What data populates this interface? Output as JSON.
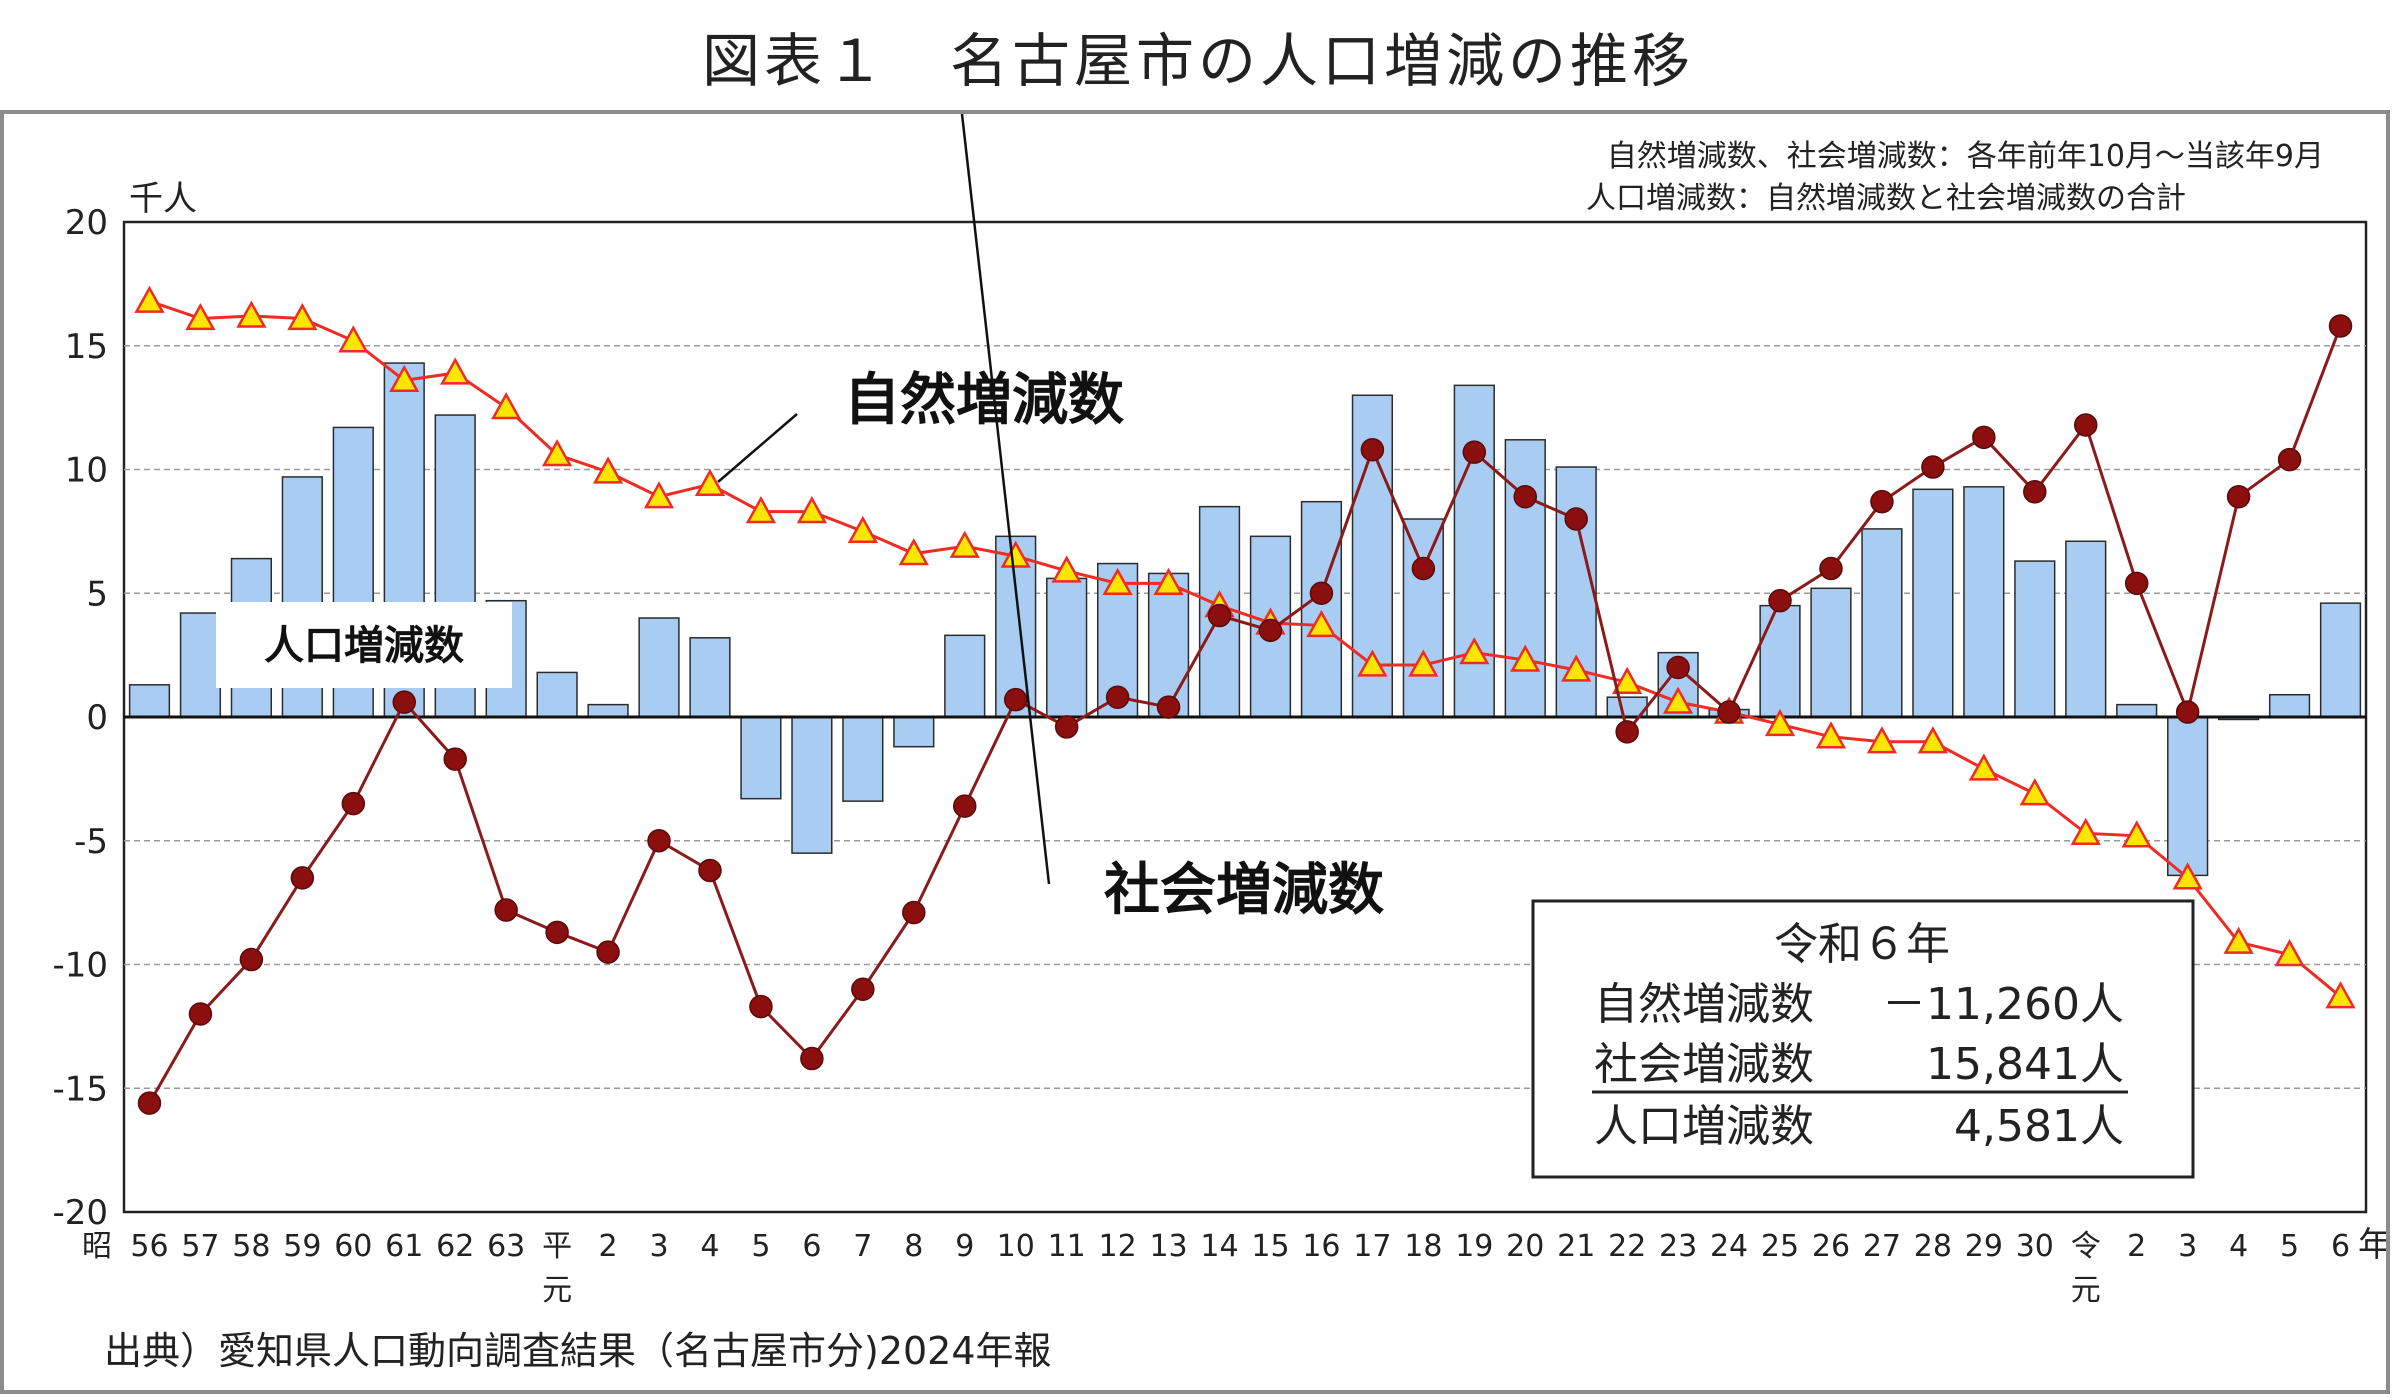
{
  "title": "図表１　名古屋市の人口増減の推移",
  "notes": [
    "自然増減数、社会増減数：各年前年10月～当該年9月",
    "人口増減数：自然増減数と社会増減数の合計"
  ],
  "source": "出典）愛知県人口動向調査結果（名古屋市分)2024年報",
  "colors": {
    "bar_fill": "#a9cdf2",
    "bar_stroke": "#2b2b2b",
    "natural_line": "#ee2b24",
    "natural_marker": "#ffe600",
    "social_line": "#8b1a1a",
    "social_marker": "#8b0f0f"
  },
  "chart_data": {
    "type": "bar",
    "unit_label": "千人",
    "year_unit": "年",
    "ylim": [
      -20,
      20
    ],
    "yticks": [
      20,
      15,
      10,
      5,
      0,
      -5,
      -10,
      -15,
      -20
    ],
    "grid": true,
    "categories": [
      "56",
      "57",
      "58",
      "59",
      "60",
      "61",
      "62",
      "63",
      "平",
      "2",
      "3",
      "4",
      "5",
      "6",
      "7",
      "8",
      "9",
      "10",
      "11",
      "12",
      "13",
      "14",
      "15",
      "16",
      "17",
      "18",
      "19",
      "20",
      "21",
      "22",
      "23",
      "24",
      "25",
      "26",
      "27",
      "28",
      "29",
      "30",
      "令",
      "2",
      "3",
      "4",
      "5",
      "6"
    ],
    "era_prefix": "昭",
    "category_sub": {
      "8": "元",
      "38": "元"
    },
    "series": [
      {
        "name": "人口増減数",
        "kind": "bar",
        "values": [
          1.3,
          4.2,
          6.4,
          9.7,
          11.7,
          14.3,
          12.2,
          4.7,
          1.8,
          0.5,
          4.0,
          3.2,
          -3.3,
          -5.5,
          -3.4,
          -1.2,
          3.3,
          7.3,
          5.6,
          6.2,
          5.8,
          8.5,
          7.3,
          8.7,
          13.0,
          8.0,
          13.4,
          11.2,
          10.1,
          0.8,
          2.6,
          0.3,
          4.5,
          5.2,
          7.6,
          9.2,
          9.3,
          6.3,
          7.1,
          0.5,
          -6.4,
          -0.1,
          0.9,
          4.6
        ]
      },
      {
        "name": "自然増減数",
        "kind": "line",
        "values": [
          16.8,
          16.1,
          16.2,
          16.1,
          15.2,
          13.6,
          13.9,
          12.5,
          10.6,
          9.9,
          8.9,
          9.4,
          8.3,
          8.3,
          7.5,
          6.6,
          6.9,
          6.5,
          5.9,
          5.4,
          5.4,
          4.5,
          3.8,
          3.7,
          2.1,
          2.1,
          2.6,
          2.3,
          1.9,
          1.4,
          0.6,
          0.2,
          -0.3,
          -0.8,
          -1.0,
          -1.0,
          -2.1,
          -3.1,
          -4.7,
          -4.8,
          -6.5,
          -9.1,
          -9.6,
          -11.3
        ]
      },
      {
        "name": "社会増減数",
        "kind": "line",
        "values": [
          -15.6,
          -12.0,
          -9.8,
          -6.5,
          -3.5,
          0.6,
          -1.7,
          -7.8,
          -8.7,
          -9.5,
          -5.0,
          -6.2,
          -11.7,
          -13.8,
          -11.0,
          -7.9,
          -3.6,
          0.7,
          -0.4,
          0.8,
          0.4,
          4.1,
          3.5,
          5.0,
          10.8,
          6.0,
          10.7,
          8.9,
          8.0,
          -0.6,
          2.0,
          0.2,
          4.7,
          6.0,
          8.7,
          10.1,
          11.3,
          9.1,
          11.8,
          5.4,
          0.2,
          8.9,
          10.4,
          15.8
        ]
      }
    ],
    "labels": {
      "natural": "自然増減数",
      "social": "社会増減数",
      "population": "人口増減数"
    },
    "summary_box": {
      "title": "令和６年",
      "rows": [
        {
          "label": "自然増減数",
          "value": "－11,260人"
        },
        {
          "label": "社会増減数",
          "value": "15,841人"
        },
        {
          "label": "人口増減数",
          "value": "4,581人"
        }
      ]
    }
  }
}
